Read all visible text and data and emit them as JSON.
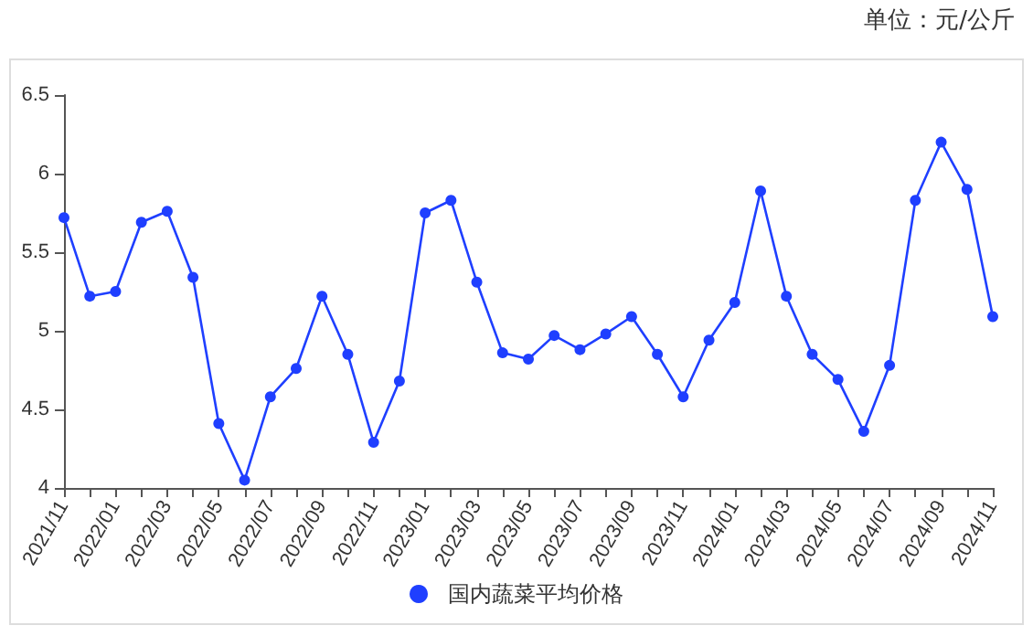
{
  "chart_data": {
    "type": "line",
    "annotations": [
      "单位：元/公斤"
    ],
    "categories": [
      "2021/11",
      null,
      "2022/01",
      null,
      "2022/03",
      null,
      "2022/05",
      null,
      "2022/07",
      null,
      "2022/09",
      null,
      "2022/11",
      null,
      "2023/01",
      null,
      "2023/03",
      null,
      "2023/05",
      null,
      "2023/07",
      null,
      "2023/09",
      null,
      "2023/11",
      null,
      "2024/01",
      null,
      "2024/03",
      null,
      "2024/05",
      null,
      "2024/07",
      null,
      "2024/09",
      null,
      "2024/11"
    ],
    "series": [
      {
        "name": "国内蔬菜平均价格",
        "color": "#1f3fff",
        "values": [
          5.72,
          5.22,
          5.25,
          5.69,
          5.76,
          5.34,
          4.41,
          4.05,
          4.58,
          4.76,
          5.22,
          4.85,
          4.29,
          4.68,
          5.75,
          5.83,
          5.31,
          4.86,
          4.82,
          4.97,
          4.88,
          4.98,
          5.09,
          4.85,
          4.58,
          4.94,
          5.18,
          5.89,
          5.22,
          4.85,
          4.69,
          4.36,
          4.78,
          5.83,
          6.2,
          5.9,
          5.09
        ]
      }
    ],
    "ylim": [
      4,
      6.5
    ],
    "yticks": [
      4,
      4.5,
      5,
      5.5,
      6,
      6.5
    ],
    "grid": false,
    "legend": "bottom",
    "marker": "circle",
    "line_style": "solid"
  }
}
